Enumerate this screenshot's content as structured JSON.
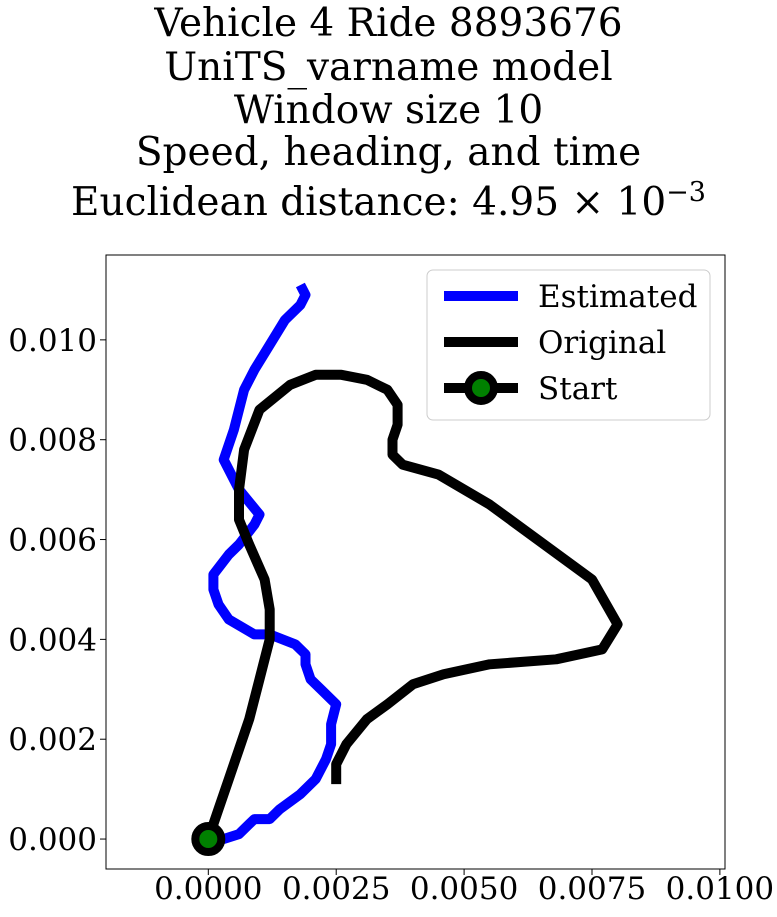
{
  "chart_data": {
    "type": "line",
    "title_lines": [
      "Vehicle 4 Ride 8893676",
      "UniTS_varname model",
      "Window size 10",
      "Speed, heading, and time"
    ],
    "title_last_prefix": "Euclidean distance: 4.95",
    "title_last_times": "×",
    "title_last_base": "10",
    "title_last_exp": "−3",
    "xlim": [
      -0.002,
      0.0101
    ],
    "ylim": [
      -0.0006,
      0.0117
    ],
    "xticks": [
      0.0,
      0.0025,
      0.005,
      0.0075,
      0.01
    ],
    "xtick_labels": [
      "0.0000",
      "0.0025",
      "0.0050",
      "0.0075",
      "0.0100"
    ],
    "yticks": [
      0.0,
      0.002,
      0.004,
      0.006,
      0.008,
      0.01
    ],
    "ytick_labels": [
      "0.000",
      "0.002",
      "0.004",
      "0.006",
      "0.008",
      "0.010"
    ],
    "legend_position": "top-right",
    "series": [
      {
        "name": "Estimated",
        "color": "#0000ff",
        "x": [
          0.0,
          0.0003,
          0.0006,
          0.0008,
          0.0009,
          0.0012,
          0.0014,
          0.0018,
          0.0021,
          0.0023,
          0.0024,
          0.0024,
          0.0025,
          0.0022,
          0.002,
          0.0019,
          0.0019,
          0.0017,
          0.0012,
          0.0009,
          0.0004,
          0.0002,
          0.0001,
          0.0001,
          0.0004,
          0.0006,
          0.0009,
          0.001,
          0.0006,
          0.0003,
          0.0005,
          0.0006,
          0.0007,
          0.0009,
          0.0012,
          0.0015,
          0.0018,
          0.0019,
          0.0018
        ],
        "y": [
          0.0,
          0.0,
          0.0001,
          0.0003,
          0.0004,
          0.0004,
          0.0006,
          0.0009,
          0.0012,
          0.0016,
          0.0019,
          0.0023,
          0.0027,
          0.003,
          0.0032,
          0.0035,
          0.0037,
          0.0039,
          0.0041,
          0.0041,
          0.0044,
          0.0047,
          0.005,
          0.0053,
          0.0057,
          0.0059,
          0.0063,
          0.0065,
          0.007,
          0.0076,
          0.0082,
          0.0086,
          0.009,
          0.0094,
          0.0099,
          0.0104,
          0.0107,
          0.0109,
          0.0111
        ]
      },
      {
        "name": "Original",
        "color": "#000000",
        "x": [
          0.0,
          0.0002,
          0.0004,
          0.0006,
          0.0008,
          0.001,
          0.0012,
          0.0012,
          0.0011,
          0.0008,
          0.0006,
          0.0006,
          0.0007,
          0.001,
          0.0016,
          0.0021,
          0.0026,
          0.0031,
          0.0035,
          0.0037,
          0.0037,
          0.0036,
          0.0036,
          0.0038,
          0.0045,
          0.0055,
          0.0075,
          0.008,
          0.0077,
          0.0068,
          0.0055,
          0.0046,
          0.004,
          0.0035,
          0.0031,
          0.0027,
          0.0025,
          0.0025
        ],
        "y": [
          0.0,
          0.0006,
          0.0012,
          0.0018,
          0.0024,
          0.0032,
          0.004,
          0.0046,
          0.0052,
          0.0059,
          0.0064,
          0.007,
          0.0078,
          0.0086,
          0.0091,
          0.0093,
          0.0093,
          0.0092,
          0.009,
          0.0087,
          0.0083,
          0.008,
          0.0077,
          0.0075,
          0.0073,
          0.0067,
          0.0052,
          0.0043,
          0.0038,
          0.0036,
          0.0035,
          0.0033,
          0.0031,
          0.0027,
          0.0024,
          0.0019,
          0.0015,
          0.0011
        ]
      }
    ],
    "start_point": {
      "name": "Start",
      "x": 0.0,
      "y": 0.0,
      "color": "#008000",
      "edge_color": "#000000"
    }
  }
}
